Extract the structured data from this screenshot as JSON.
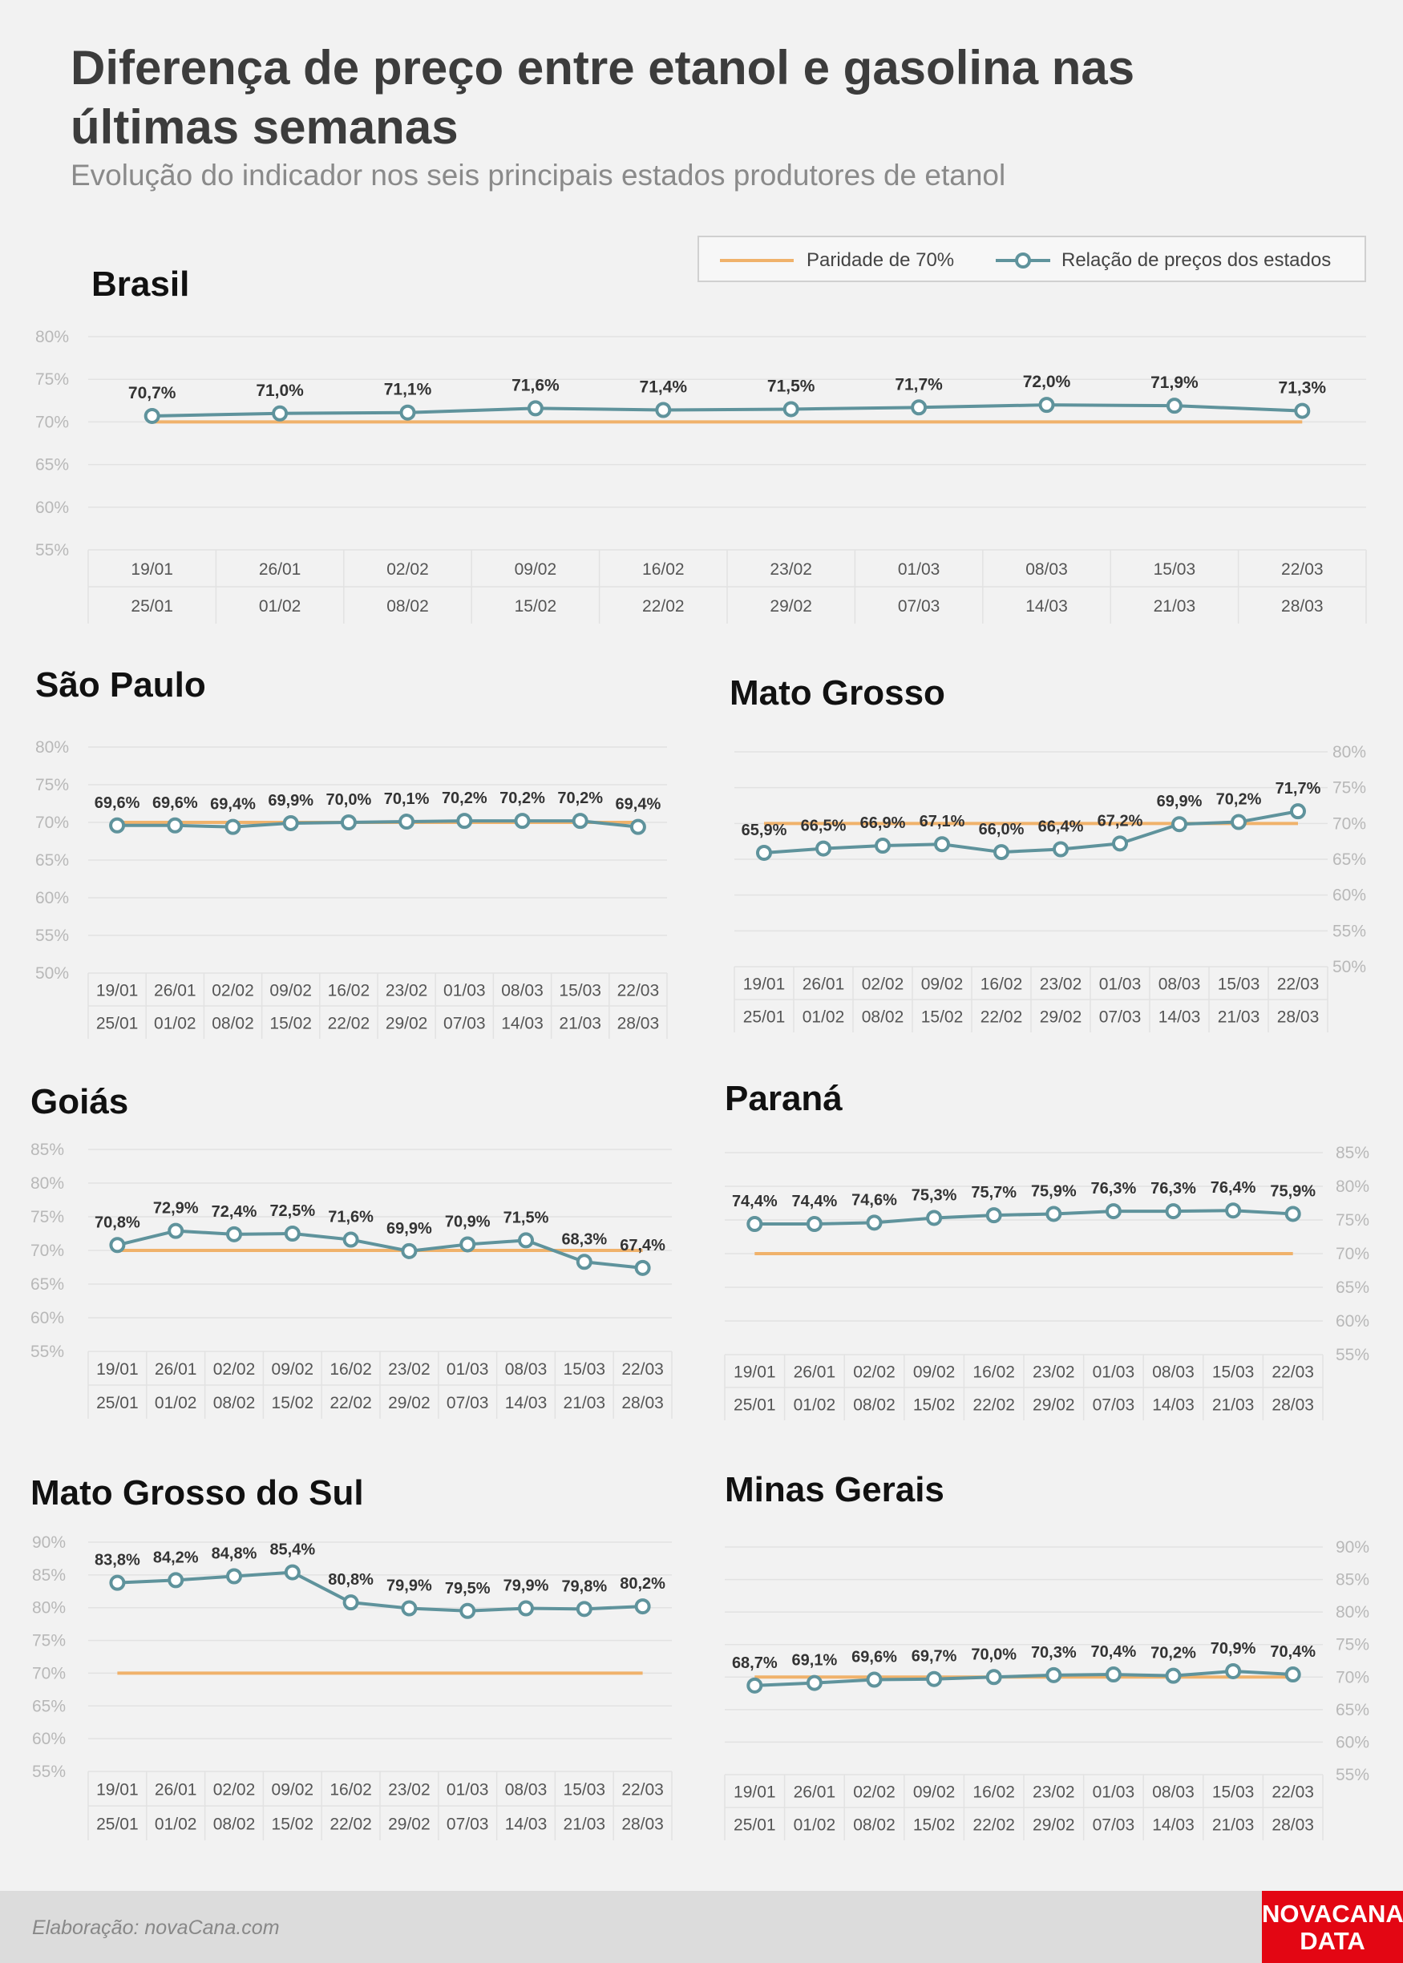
{
  "header": {
    "title": "Diferença de preço entre etanol e gasolina nas últimas semanas",
    "subtitle": "Evolução do indicador nos seis principais estados produtores de etanol"
  },
  "legend": {
    "parity_label": "Paridade de 70%",
    "ratio_label": "Relação de preços dos estados"
  },
  "colors": {
    "parity": "#f0b26b",
    "series": "#5f939c",
    "grid": "#e2e2e2",
    "axis_text": "#b8b8b8",
    "brand": "#e30613"
  },
  "footer": {
    "credit": "Elaboração: novaCana.com",
    "brand_line1": "NOVACANA",
    "brand_line2": "DATA"
  },
  "chart_data": [
    {
      "type": "line",
      "title": "Brasil",
      "weeks_start": [
        "19/01",
        "26/01",
        "02/02",
        "09/02",
        "16/02",
        "23/02",
        "01/03",
        "08/03",
        "15/03",
        "22/03"
      ],
      "weeks_end": [
        "25/01",
        "01/02",
        "08/02",
        "15/02",
        "22/02",
        "29/02",
        "07/03",
        "14/03",
        "21/03",
        "28/03"
      ],
      "values": [
        70.7,
        71.0,
        71.1,
        71.6,
        71.4,
        71.5,
        71.7,
        72.0,
        71.9,
        71.3
      ],
      "labels": [
        "70,7%",
        "71,0%",
        "71,1%",
        "71,6%",
        "71,4%",
        "71,5%",
        "71,7%",
        "72,0%",
        "71,9%",
        "71,3%"
      ],
      "parity": 70,
      "ylim": [
        55,
        80
      ],
      "yticks": [
        "55%",
        "60%",
        "65%",
        "70%",
        "75%",
        "80%"
      ],
      "y_axis": "left",
      "grid": true
    },
    {
      "type": "line",
      "title": "São Paulo",
      "weeks_start": [
        "19/01",
        "26/01",
        "02/02",
        "09/02",
        "16/02",
        "23/02",
        "01/03",
        "08/03",
        "15/03",
        "22/03"
      ],
      "weeks_end": [
        "25/01",
        "01/02",
        "08/02",
        "15/02",
        "22/02",
        "29/02",
        "07/03",
        "14/03",
        "21/03",
        "28/03"
      ],
      "values": [
        69.6,
        69.6,
        69.4,
        69.9,
        70.0,
        70.1,
        70.2,
        70.2,
        70.2,
        69.4
      ],
      "labels": [
        "69,6%",
        "69,6%",
        "69,4%",
        "69,9%",
        "70,0%",
        "70,1%",
        "70,2%",
        "70,2%",
        "70,2%",
        "69,4%"
      ],
      "parity": 70,
      "ylim": [
        50,
        80
      ],
      "yticks": [
        "50%",
        "55%",
        "60%",
        "65%",
        "70%",
        "75%",
        "80%"
      ],
      "y_axis": "left",
      "grid": true
    },
    {
      "type": "line",
      "title": "Mato Grosso",
      "weeks_start": [
        "19/01",
        "26/01",
        "02/02",
        "09/02",
        "16/02",
        "23/02",
        "01/03",
        "08/03",
        "15/03",
        "22/03"
      ],
      "weeks_end": [
        "25/01",
        "01/02",
        "08/02",
        "15/02",
        "22/02",
        "29/02",
        "07/03",
        "14/03",
        "21/03",
        "28/03"
      ],
      "values": [
        65.9,
        66.5,
        66.9,
        67.1,
        66.0,
        66.4,
        67.2,
        69.9,
        70.2,
        71.7
      ],
      "labels": [
        "65,9%",
        "66,5%",
        "66,9%",
        "67,1%",
        "66,0%",
        "66,4%",
        "67,2%",
        "69,9%",
        "70,2%",
        "71,7%"
      ],
      "parity": 70,
      "ylim": [
        50,
        80
      ],
      "yticks": [
        "50%",
        "55%",
        "60%",
        "65%",
        "70%",
        "75%",
        "80%"
      ],
      "y_axis": "right",
      "grid": true
    },
    {
      "type": "line",
      "title": "Goiás",
      "weeks_start": [
        "19/01",
        "26/01",
        "02/02",
        "09/02",
        "16/02",
        "23/02",
        "01/03",
        "08/03",
        "15/03",
        "22/03"
      ],
      "weeks_end": [
        "25/01",
        "01/02",
        "08/02",
        "15/02",
        "22/02",
        "29/02",
        "07/03",
        "14/03",
        "21/03",
        "28/03"
      ],
      "values": [
        70.8,
        72.9,
        72.4,
        72.5,
        71.6,
        69.9,
        70.9,
        71.5,
        68.3,
        67.4
      ],
      "labels": [
        "70,8%",
        "72,9%",
        "72,4%",
        "72,5%",
        "71,6%",
        "69,9%",
        "70,9%",
        "71,5%",
        "68,3%",
        "67,4%"
      ],
      "parity": 70,
      "ylim": [
        55,
        85
      ],
      "yticks": [
        "55%",
        "60%",
        "65%",
        "70%",
        "75%",
        "80%",
        "85%"
      ],
      "y_axis": "left",
      "grid": true
    },
    {
      "type": "line",
      "title": "Paraná",
      "weeks_start": [
        "19/01",
        "26/01",
        "02/02",
        "09/02",
        "16/02",
        "23/02",
        "01/03",
        "08/03",
        "15/03",
        "22/03"
      ],
      "weeks_end": [
        "25/01",
        "01/02",
        "08/02",
        "15/02",
        "22/02",
        "29/02",
        "07/03",
        "14/03",
        "21/03",
        "28/03"
      ],
      "values": [
        74.4,
        74.4,
        74.6,
        75.3,
        75.7,
        75.9,
        76.3,
        76.3,
        76.4,
        75.9
      ],
      "labels": [
        "74,4%",
        "74,4%",
        "74,6%",
        "75,3%",
        "75,7%",
        "75,9%",
        "76,3%",
        "76,3%",
        "76,4%",
        "75,9%"
      ],
      "parity": 70,
      "ylim": [
        55,
        85
      ],
      "yticks": [
        "55%",
        "60%",
        "65%",
        "70%",
        "75%",
        "80%",
        "85%"
      ],
      "y_axis": "right",
      "grid": true
    },
    {
      "type": "line",
      "title": "Mato Grosso do Sul",
      "weeks_start": [
        "19/01",
        "26/01",
        "02/02",
        "09/02",
        "16/02",
        "23/02",
        "01/03",
        "08/03",
        "15/03",
        "22/03"
      ],
      "weeks_end": [
        "25/01",
        "01/02",
        "08/02",
        "15/02",
        "22/02",
        "29/02",
        "07/03",
        "14/03",
        "21/03",
        "28/03"
      ],
      "values": [
        83.8,
        84.2,
        84.8,
        85.4,
        80.8,
        79.9,
        79.5,
        79.9,
        79.8,
        80.2
      ],
      "labels": [
        "83,8%",
        "84,2%",
        "84,8%",
        "85,4%",
        "80,8%",
        "79,9%",
        "79,5%",
        "79,9%",
        "79,8%",
        "80,2%"
      ],
      "parity": 70,
      "ylim": [
        55,
        90
      ],
      "yticks": [
        "55%",
        "60%",
        "65%",
        "70%",
        "75%",
        "80%",
        "85%",
        "90%"
      ],
      "y_axis": "left",
      "grid": true
    },
    {
      "type": "line",
      "title": "Minas Gerais",
      "weeks_start": [
        "19/01",
        "26/01",
        "02/02",
        "09/02",
        "16/02",
        "23/02",
        "01/03",
        "08/03",
        "15/03",
        "22/03"
      ],
      "weeks_end": [
        "25/01",
        "01/02",
        "08/02",
        "15/02",
        "22/02",
        "29/02",
        "07/03",
        "14/03",
        "21/03",
        "28/03"
      ],
      "values": [
        68.7,
        69.1,
        69.6,
        69.7,
        70.0,
        70.3,
        70.4,
        70.2,
        70.9,
        70.4
      ],
      "labels": [
        "68,7%",
        "69,1%",
        "69,6%",
        "69,7%",
        "70,0%",
        "70,3%",
        "70,4%",
        "70,2%",
        "70,9%",
        "70,4%"
      ],
      "parity": 70,
      "ylim": [
        55,
        90
      ],
      "yticks": [
        "55%",
        "60%",
        "65%",
        "70%",
        "75%",
        "80%",
        "85%",
        "90%"
      ],
      "y_axis": "right",
      "grid": true
    }
  ]
}
